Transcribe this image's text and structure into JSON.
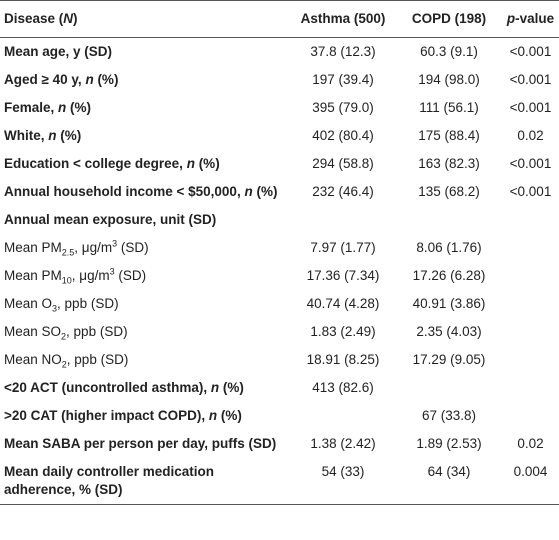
{
  "table": {
    "header": [
      [
        "Disease (",
        "N",
        ")"
      ],
      "Asthma (500)",
      "COPD (198)",
      [
        "p",
        "-value"
      ]
    ],
    "rows": [
      {
        "label": [
          "Mean age, y (SD)"
        ],
        "asthma": "37.8 (12.3)",
        "copd": "60.3 (9.1)",
        "p": "<0.001"
      },
      {
        "label": [
          "Aged ≥ 40 y, ",
          "n",
          " (%)"
        ],
        "asthma": "197 (39.4)",
        "copd": "194 (98.0)",
        "p": "<0.001"
      },
      {
        "label": [
          "Female, ",
          "n",
          " (%)"
        ],
        "asthma": "395 (79.0)",
        "copd": "111 (56.1)",
        "p": "<0.001"
      },
      {
        "label": [
          "White, ",
          "n",
          " (%)"
        ],
        "asthma": "402 (80.4)",
        "copd": "175 (88.4)",
        "p": "0.02"
      },
      {
        "label": [
          "Education < college degree, ",
          "n",
          " (%)"
        ],
        "asthma": "294 (58.8)",
        "copd": "163 (82.3)",
        "p": "<0.001"
      },
      {
        "label": [
          "Annual household income < $50,000, ",
          "n",
          " (%)"
        ],
        "asthma": "232 (46.4)",
        "copd": "135 (68.2)",
        "p": "<0.001"
      },
      {
        "label": [
          "Annual mean exposure, unit (SD)"
        ]
      },
      {
        "label": [
          "Mean PM",
          "2.5",
          ", μg/m",
          "3",
          " (SD)"
        ],
        "asthma": "7.97 (1.77)",
        "copd": "8.06 (1.76)"
      },
      {
        "label": [
          "Mean PM",
          "10",
          ", μg/m",
          "3",
          " (SD)"
        ],
        "asthma": "17.36 (7.34)",
        "copd": "17.26 (6.28)"
      },
      {
        "label": [
          "Mean O",
          "3",
          ", ppb (SD)"
        ],
        "asthma": "40.74 (4.28)",
        "copd": "40.91 (3.86)"
      },
      {
        "label": [
          "Mean SO",
          "2",
          ", ppb (SD)"
        ],
        "asthma": "1.83 (2.49)",
        "copd": "2.35 (4.03)"
      },
      {
        "label": [
          "Mean NO",
          "2",
          ", ppb (SD)"
        ],
        "asthma": "18.91 (8.25)",
        "copd": "17.29 (9.05)"
      },
      {
        "label": [
          "<20 ACT (uncontrolled asthma), ",
          "n",
          " (%)"
        ],
        "asthma": "413 (82.6)"
      },
      {
        "label": [
          ">20 CAT (higher impact COPD), ",
          "n",
          " (%)"
        ],
        "copd": "67 (33.8)"
      },
      {
        "label": [
          "Mean SABA per person per day, puffs (SD)"
        ],
        "asthma": "1.38 (2.42)",
        "copd": "1.89 (2.53)",
        "p": "0.02"
      },
      {
        "label": [
          "Mean daily controller medication adherence, % (SD)"
        ],
        "asthma": "54 (33)",
        "copd": "64 (34)",
        "p": "0.004"
      }
    ]
  }
}
